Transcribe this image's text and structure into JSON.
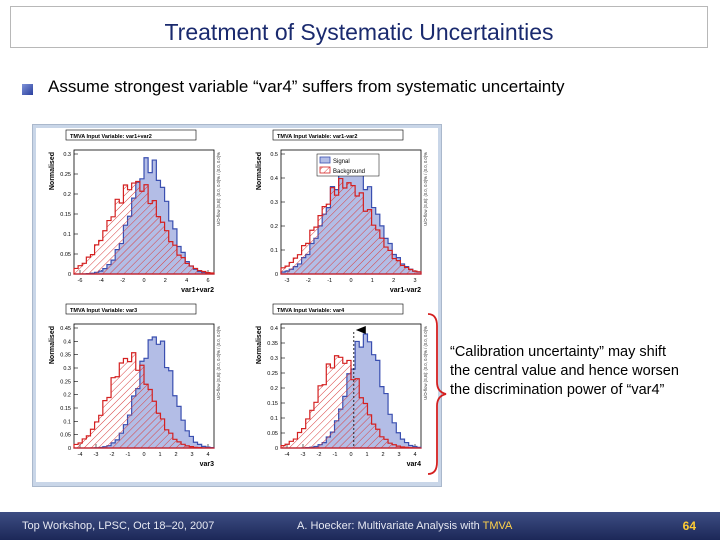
{
  "slide": {
    "title": "Treatment of Systematic Uncertainties",
    "bullet": "Assume strongest variable “var4” suffers from systematic uncertainty",
    "callout": "“Calibration uncertainty” may shift the central value and hence worsen the discrimination power of “var4”"
  },
  "plots": {
    "ylabel": "Normalised",
    "titles": [
      "TMVA Input Variable: var1+var2",
      "TMVA Input Variable: var1-var2",
      "TMVA Input Variable: var3",
      "TMVA Input Variable: var4"
    ],
    "xlabels": [
      "var1+var2",
      "var1-var2",
      "var3",
      "var4"
    ],
    "legend": {
      "signal": "Signal",
      "background": "Background"
    },
    "colors": {
      "signal": "#3a4fb0",
      "signal_fill": "#b3bde6",
      "background": "#d42020",
      "background_hatch": "#d84040"
    },
    "yticks": [
      [
        "0.3",
        "0.25",
        "0.2",
        "0.15",
        "0.1",
        "0.05",
        "0"
      ],
      [
        "0.5",
        "0.4",
        "0.3",
        "0.2",
        "0.1",
        "0"
      ],
      [
        "0.45",
        "0.4",
        "0.35",
        "0.3",
        "0.25",
        "0.2",
        "0.15",
        "0.1",
        "0.05",
        "0"
      ],
      [
        "0.4",
        "0.35",
        "0.3",
        "0.25",
        "0.2",
        "0.15",
        "0.1",
        "0.05",
        "0"
      ]
    ],
    "xticks": [
      [
        "-6",
        "-4",
        "-2",
        "0",
        "2",
        "4",
        "6"
      ],
      [
        "-3",
        "-2",
        "-1",
        "0",
        "1",
        "2",
        "3"
      ],
      [
        "-4",
        "-3",
        "-2",
        "-1",
        "0",
        "1",
        "2",
        "3",
        "4"
      ],
      [
        "-4",
        "-3",
        "-2",
        "-1",
        "0",
        "1",
        "2",
        "3",
        "4"
      ]
    ],
    "overflow": [
      "U/O-flow (S,B): (0.0, 0.0)% / (0.0, 0.0)%",
      "U/O-flow (S,B): (0.0, 0.0)% / (0.0, 0.0)%",
      "U/O-flow (S,B): (0.0, 0.0)% / (0.0, 0.0)%",
      "U/O-flow (S,B): (0.0, 0.0)% / (0.0, 0.0)%"
    ]
  },
  "footer": {
    "left": "Top Workshop, LPSC, Oct 18–20, 2007",
    "author": "A. Hoecker: ",
    "center": "Multivariate Analysis with ",
    "tmva": "TMVA",
    "page": "64"
  }
}
